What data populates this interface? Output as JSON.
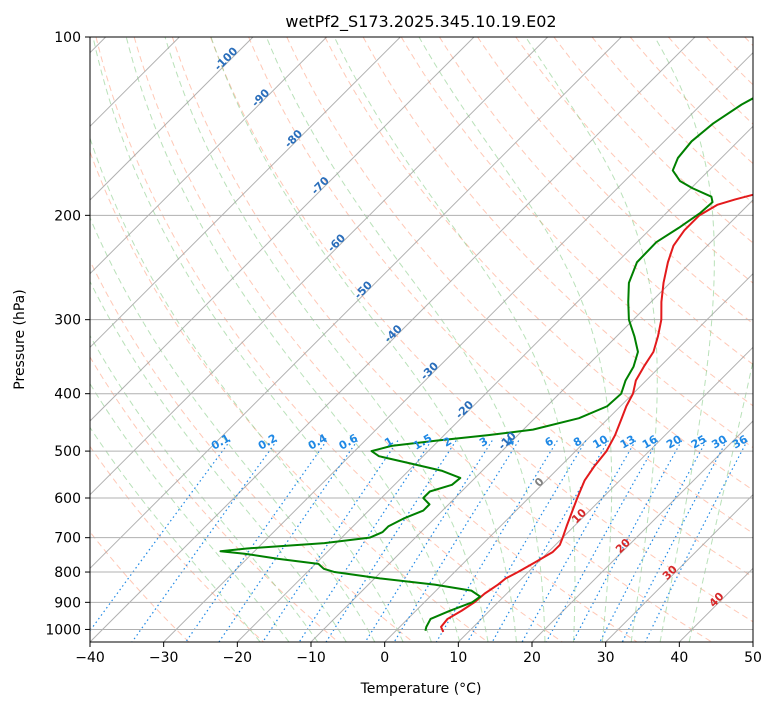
{
  "chart_data": {
    "type": "line",
    "title": "wetPf2_S173.2025.345.10.19.E02",
    "xlabel": "Temperature (°C)",
    "ylabel": "Pressure (hPa)",
    "xlim": [
      -40,
      50
    ],
    "ylim": [
      1050,
      100
    ],
    "y_scale": "log",
    "x_ticks": [
      "−40",
      "−30",
      "−20",
      "−10",
      "0",
      "10",
      "20",
      "30",
      "40",
      "50"
    ],
    "y_ticks": [
      "100",
      "200",
      "300",
      "400",
      "500",
      "600",
      "700",
      "800",
      "900",
      "1000"
    ],
    "grid": true,
    "skew": 45,
    "colors": {
      "temperature": "#e31a1c",
      "dewpoint": "#008000",
      "isotherm": "#9e9e9e",
      "dry_adiabat": "#ff9b7a",
      "moist_adiabat": "#7fc97f",
      "mixing_ratio": "#1e88e5",
      "isotherm_label": "#2a6ebb",
      "warm_label": "#d62728"
    },
    "isotherm_labels": [
      "-100",
      "-90",
      "-80",
      "-70",
      "-60",
      "-50",
      "-40",
      "-30",
      "-20",
      "-10",
      "0",
      "10",
      "20",
      "30",
      "40"
    ],
    "mixing_ratio_labels": [
      "0.1",
      "0.2",
      "0.4",
      "0.6",
      "1",
      "1.5",
      "2",
      "3",
      "4",
      "6",
      "8",
      "10",
      "13",
      "16",
      "20",
      "25",
      "30",
      "36"
    ],
    "series": [
      {
        "name": "Temperature",
        "color": "#e31a1c",
        "points": [
          [
            1010,
            6.6
          ],
          [
            990,
            5.6
          ],
          [
            960,
            5.4
          ],
          [
            930,
            6.2
          ],
          [
            900,
            6.8
          ],
          [
            870,
            7.0
          ],
          [
            840,
            7.6
          ],
          [
            820,
            7.8
          ],
          [
            800,
            8.6
          ],
          [
            770,
            9.6
          ],
          [
            740,
            10.6
          ],
          [
            720,
            10.6
          ],
          [
            700,
            10.0
          ],
          [
            670,
            9.0
          ],
          [
            640,
            8.0
          ],
          [
            600,
            6.6
          ],
          [
            560,
            5.2
          ],
          [
            530,
            4.6
          ],
          [
            500,
            4.2
          ],
          [
            470,
            3.2
          ],
          [
            440,
            1.8
          ],
          [
            420,
            0.8
          ],
          [
            400,
            0.0
          ],
          [
            380,
            -1.4
          ],
          [
            360,
            -2.2
          ],
          [
            340,
            -2.9
          ],
          [
            320,
            -4.4
          ],
          [
            300,
            -6.2
          ],
          [
            280,
            -8.6
          ],
          [
            260,
            -10.9
          ],
          [
            240,
            -13.1
          ],
          [
            225,
            -14.6
          ],
          [
            212,
            -15.2
          ],
          [
            200,
            -15.2
          ],
          [
            192,
            -14.2
          ],
          [
            188,
            -12.5
          ],
          [
            180,
            -8.2
          ],
          [
            172,
            -2.0
          ],
          [
            165,
            2.9
          ],
          [
            160,
            6.4
          ],
          [
            150,
            11.8
          ],
          [
            140,
            14.6
          ],
          [
            130,
            16.0
          ],
          [
            120,
            18.0
          ],
          [
            112,
            20.8
          ],
          [
            105,
            20.9
          ],
          [
            100,
            21.7
          ]
        ]
      },
      {
        "name": "Dewpoint",
        "color": "#008000",
        "points": [
          [
            1005,
            4.0
          ],
          [
            990,
            3.6
          ],
          [
            960,
            3.1
          ],
          [
            930,
            4.6
          ],
          [
            900,
            6.5
          ],
          [
            880,
            6.8
          ],
          [
            860,
            4.8
          ],
          [
            840,
            -1.0
          ],
          [
            820,
            -9.3
          ],
          [
            800,
            -16.3
          ],
          [
            790,
            -18.2
          ],
          [
            775,
            -19.6
          ],
          [
            760,
            -25.7
          ],
          [
            745,
            -31.0
          ],
          [
            738,
            -34.6
          ],
          [
            730,
            -31.4
          ],
          [
            715,
            -21.6
          ],
          [
            700,
            -16.2
          ],
          [
            685,
            -15.2
          ],
          [
            670,
            -15.2
          ],
          [
            650,
            -14.2
          ],
          [
            630,
            -12.6
          ],
          [
            615,
            -12.6
          ],
          [
            600,
            -14.3
          ],
          [
            585,
            -14.3
          ],
          [
            570,
            -12.2
          ],
          [
            555,
            -12.0
          ],
          [
            540,
            -15.4
          ],
          [
            525,
            -20.6
          ],
          [
            510,
            -26.0
          ],
          [
            500,
            -27.7
          ],
          [
            490,
            -25.7
          ],
          [
            480,
            -20.3
          ],
          [
            470,
            -14.0
          ],
          [
            460,
            -8.7
          ],
          [
            440,
            -4.0
          ],
          [
            420,
            -1.8
          ],
          [
            400,
            -1.6
          ],
          [
            380,
            -2.8
          ],
          [
            360,
            -3.6
          ],
          [
            340,
            -5.0
          ],
          [
            320,
            -7.6
          ],
          [
            300,
            -10.6
          ],
          [
            280,
            -13.1
          ],
          [
            260,
            -15.6
          ],
          [
            240,
            -17.3
          ],
          [
            222,
            -17.4
          ],
          [
            210,
            -16.3
          ],
          [
            198,
            -15.4
          ],
          [
            190,
            -15.2
          ],
          [
            186,
            -16.1
          ],
          [
            180,
            -19.8
          ],
          [
            175,
            -22.5
          ],
          [
            168,
            -24.9
          ],
          [
            160,
            -25.9
          ],
          [
            150,
            -26.3
          ],
          [
            140,
            -25.8
          ],
          [
            130,
            -24.5
          ],
          [
            120,
            -22.2
          ],
          [
            110,
            -19.1
          ],
          [
            100,
            -16.0
          ]
        ]
      }
    ]
  }
}
